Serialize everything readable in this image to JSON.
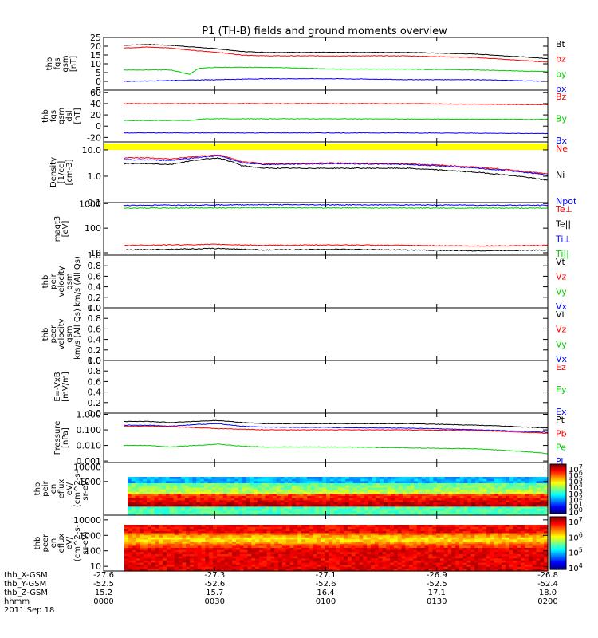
{
  "title": "P1 (TH-B) fields and ground moments overview",
  "colors": {
    "black": "#000000",
    "red": "#ff0000",
    "green": "#00cc00",
    "blue": "#0000ff",
    "yellow": "#ffff00"
  },
  "chart_data": [
    {
      "type": "line",
      "ylabel": [
        "thb",
        "fgs",
        "gsm",
        "[nT]"
      ],
      "yticks": [
        "25",
        "20",
        "15",
        "10",
        "5",
        "0",
        "-5"
      ],
      "ylim": [
        -5,
        25
      ],
      "yscale": "linear",
      "legend": [
        {
          "label": "Bt",
          "color": "black"
        },
        {
          "label": "bz",
          "color": "red"
        },
        {
          "label": "by",
          "color": "green"
        },
        {
          "label": "bx",
          "color": "blue"
        }
      ],
      "series": [
        {
          "name": "Bt",
          "color": "black",
          "x": [
            0,
            10,
            20,
            30,
            40,
            50,
            60,
            90,
            120,
            150,
            180
          ],
          "y": [
            20.5,
            21,
            20.5,
            19.5,
            18.5,
            17,
            16.5,
            16.5,
            16.5,
            15.5,
            13
          ]
        },
        {
          "name": "bz",
          "color": "red",
          "x": [
            0,
            10,
            20,
            30,
            40,
            50,
            60,
            90,
            120,
            150,
            180
          ],
          "y": [
            19,
            19.5,
            19,
            17.5,
            16.5,
            15,
            14.5,
            14.5,
            14.5,
            13.5,
            11
          ]
        },
        {
          "name": "by",
          "color": "green",
          "x": [
            0,
            20,
            28,
            32,
            40,
            60,
            90,
            120,
            150,
            180
          ],
          "y": [
            6.5,
            6.5,
            4,
            7.5,
            8,
            8,
            7,
            7,
            6.5,
            5.5
          ]
        },
        {
          "name": "bx",
          "color": "blue",
          "x": [
            0,
            20,
            40,
            60,
            90,
            120,
            150,
            180
          ],
          "y": [
            0,
            0.5,
            1,
            1.5,
            1.5,
            1,
            1,
            0
          ]
        }
      ]
    },
    {
      "type": "line",
      "ylabel": [
        "thb",
        "fgs",
        "gsm",
        "dsl",
        "[nT]"
      ],
      "yticks": [
        "60",
        "40",
        "20",
        "0",
        "-20"
      ],
      "ylim": [
        -28,
        64
      ],
      "yscale": "linear",
      "legend": [
        {
          "label": "Bz",
          "color": "red"
        },
        {
          "label": "By",
          "color": "green"
        },
        {
          "label": "Bx",
          "color": "blue"
        }
      ],
      "series": [
        {
          "name": "Bz",
          "color": "red",
          "x": [
            0,
            60,
            120,
            180
          ],
          "y": [
            40,
            40,
            40,
            38
          ]
        },
        {
          "name": "By",
          "color": "green",
          "x": [
            0,
            28,
            34,
            90,
            180
          ],
          "y": [
            10,
            10,
            13,
            13,
            12
          ]
        },
        {
          "name": "Bx",
          "color": "blue",
          "x": [
            0,
            60,
            120,
            180
          ],
          "y": [
            -12,
            -12,
            -12,
            -13
          ]
        }
      ]
    },
    {
      "type": "line",
      "ylabel": [
        "Density",
        "[1/cc]",
        "[cm-3]"
      ],
      "yticks": [
        "10.0",
        "1.0",
        "0.1"
      ],
      "ylim": [
        0.1,
        20
      ],
      "yscale": "log",
      "legend": [
        {
          "label": "Ne",
          "color": "red"
        },
        {
          "label": "Ni",
          "color": "black"
        },
        {
          "label": "Npot",
          "color": "blue"
        }
      ],
      "series": [
        {
          "name": "Ne",
          "color": "red",
          "x": [
            0,
            10,
            20,
            30,
            40,
            50,
            60,
            90,
            120,
            150,
            180
          ],
          "y": [
            5,
            5,
            4.5,
            5.5,
            6.5,
            3.5,
            3,
            3.2,
            3,
            2.2,
            1.2
          ]
        },
        {
          "name": "Npot",
          "color": "blue",
          "x": [
            0,
            10,
            20,
            30,
            40,
            50,
            60,
            90,
            120,
            150,
            180
          ],
          "y": [
            4.2,
            4.2,
            4,
            5,
            6,
            3.2,
            2.8,
            3,
            2.8,
            2,
            1.1
          ]
        },
        {
          "name": "Ni",
          "color": "black",
          "x": [
            0,
            10,
            20,
            30,
            40,
            50,
            60,
            90,
            120,
            150,
            180
          ],
          "y": [
            3,
            3,
            2.8,
            4,
            5,
            2.5,
            2,
            2,
            2,
            1.4,
            0.7
          ]
        }
      ]
    },
    {
      "type": "line",
      "ylabel": [
        "magt3",
        "[eV]"
      ],
      "yticks": [
        "1000",
        "100",
        "10"
      ],
      "ylim": [
        8,
        1100
      ],
      "yscale": "log",
      "legend": [
        {
          "label": "Te⊥",
          "color": "red"
        },
        {
          "label": "Te||",
          "color": "black"
        },
        {
          "label": "Ti⊥",
          "color": "blue"
        },
        {
          "label": "Ti||",
          "color": "green"
        }
      ],
      "series": [
        {
          "name": "Ti⊥",
          "color": "blue",
          "x": [
            0,
            60,
            120,
            180
          ],
          "y": [
            850,
            900,
            880,
            850
          ]
        },
        {
          "name": "Ti||",
          "color": "green",
          "x": [
            0,
            60,
            120,
            180
          ],
          "y": [
            650,
            680,
            660,
            650
          ]
        },
        {
          "name": "Te⊥",
          "color": "red",
          "x": [
            0,
            20,
            40,
            60,
            90,
            120,
            150,
            180
          ],
          "y": [
            20,
            21,
            22,
            20,
            21,
            20,
            19,
            20
          ]
        },
        {
          "name": "Te||",
          "color": "black",
          "x": [
            0,
            20,
            40,
            60,
            90,
            120,
            150,
            180
          ],
          "y": [
            13,
            14,
            15,
            13,
            14,
            13,
            12,
            13
          ]
        }
      ]
    },
    {
      "type": "line",
      "ylabel": [
        "thb",
        "peir",
        "velocity",
        "gsm",
        "km/s (All Qs)"
      ],
      "yticks": [
        "1.0",
        "0.8",
        "0.6",
        "0.4",
        "0.2",
        "0.0"
      ],
      "ylim": [
        0,
        1
      ],
      "yscale": "linear",
      "legend": [
        {
          "label": "Vt",
          "color": "black"
        },
        {
          "label": "Vz",
          "color": "red"
        },
        {
          "label": "Vy",
          "color": "green"
        },
        {
          "label": "Vx",
          "color": "blue"
        }
      ],
      "series": []
    },
    {
      "type": "line",
      "ylabel": [
        "thb",
        "peer",
        "velocity",
        "gsm",
        "km/s (All Qs)"
      ],
      "yticks": [
        "1.0",
        "0.8",
        "0.6",
        "0.4",
        "0.2",
        "0.0"
      ],
      "ylim": [
        0,
        1
      ],
      "yscale": "linear",
      "legend": [
        {
          "label": "Vt",
          "color": "black"
        },
        {
          "label": "Vz",
          "color": "red"
        },
        {
          "label": "Vy",
          "color": "green"
        },
        {
          "label": "Vx",
          "color": "blue"
        }
      ],
      "series": []
    },
    {
      "type": "line",
      "ylabel": [
        "E=-VxB",
        "[mV/m]"
      ],
      "yticks": [
        "1.0",
        "0.8",
        "0.6",
        "0.4",
        "0.2",
        "0.0"
      ],
      "ylim": [
        0,
        1
      ],
      "yscale": "linear",
      "legend": [
        {
          "label": "Ez",
          "color": "red"
        },
        {
          "label": "Ey",
          "color": "green"
        },
        {
          "label": "Ex",
          "color": "blue"
        }
      ],
      "series": []
    },
    {
      "type": "line",
      "ylabel": [
        "Pressure",
        "[nPa]"
      ],
      "yticks": [
        "1.000",
        "0.100",
        "0.010",
        "0.001"
      ],
      "ylim": [
        0.0008,
        1.2
      ],
      "yscale": "log",
      "legend": [
        {
          "label": "Pt",
          "color": "black"
        },
        {
          "label": "Pb",
          "color": "red"
        },
        {
          "label": "Pe",
          "color": "green"
        },
        {
          "label": "Pi",
          "color": "blue"
        }
      ],
      "series": [
        {
          "name": "Pt",
          "color": "black",
          "x": [
            0,
            10,
            20,
            30,
            40,
            50,
            60,
            90,
            120,
            150,
            180
          ],
          "y": [
            0.35,
            0.35,
            0.3,
            0.35,
            0.4,
            0.3,
            0.25,
            0.25,
            0.25,
            0.2,
            0.13
          ]
        },
        {
          "name": "Pi",
          "color": "blue",
          "x": [
            0,
            10,
            20,
            30,
            40,
            50,
            60,
            90,
            120,
            150,
            180
          ],
          "y": [
            0.2,
            0.2,
            0.17,
            0.22,
            0.25,
            0.17,
            0.15,
            0.14,
            0.13,
            0.1,
            0.07
          ]
        },
        {
          "name": "Pb",
          "color": "red",
          "x": [
            0,
            10,
            20,
            30,
            40,
            50,
            60,
            90,
            120,
            150,
            180
          ],
          "y": [
            0.17,
            0.17,
            0.16,
            0.14,
            0.12,
            0.11,
            0.1,
            0.1,
            0.1,
            0.09,
            0.06
          ]
        },
        {
          "name": "Pe",
          "color": "green",
          "x": [
            0,
            10,
            20,
            30,
            40,
            50,
            60,
            90,
            120,
            150,
            180
          ],
          "y": [
            0.01,
            0.01,
            0.008,
            0.01,
            0.012,
            0.009,
            0.008,
            0.008,
            0.007,
            0.006,
            0.003
          ]
        }
      ]
    },
    {
      "type": "heatmap",
      "ylabel": [
        "thb",
        "peir",
        "en",
        "eflux",
        "eV/",
        "(cm^2-s-",
        "sr-eV)"
      ],
      "yticks": [
        "10000",
        "1000"
      ],
      "ylim": [
        5,
        20000
      ],
      "yscale": "log",
      "colorbar_ticks": [
        "10^7",
        "10^6",
        "10^5",
        "10^4",
        "10^3",
        "10^2",
        "10^1",
        "10^0"
      ]
    },
    {
      "type": "heatmap",
      "ylabel": [
        "thb",
        "peer",
        "en",
        "eflux",
        "eV/",
        "(cm^2-s-",
        "sr-eV)"
      ],
      "yticks": [
        "10000",
        "1000",
        "100",
        "10"
      ],
      "ylim": [
        5,
        20000
      ],
      "yscale": "log",
      "colorbar_ticks": [
        "10^7",
        "10^6",
        "10^5",
        "10^4"
      ]
    }
  ],
  "xaxis": {
    "row_labels": [
      "thb_X-GSM",
      "thb_Y-GSM",
      "thb_Z-GSM",
      "hhmm",
      "2011 Sep 18"
    ],
    "ticks": [
      {
        "t": 0,
        "values": [
          "-27.6",
          "-52.5",
          "15.2",
          "0000"
        ]
      },
      {
        "t": 30,
        "values": [
          "-27.3",
          "-52.6",
          "15.7",
          "0030"
        ]
      },
      {
        "t": 60,
        "values": [
          "-27.1",
          "-52.6",
          "16.4",
          "0100"
        ]
      },
      {
        "t": 90,
        "values": [
          "-26.9",
          "-52.5",
          "17.1",
          "0130"
        ]
      },
      {
        "t": 120,
        "values": [
          "-26.8",
          "-52.4",
          "18.0",
          "0200"
        ]
      }
    ]
  }
}
